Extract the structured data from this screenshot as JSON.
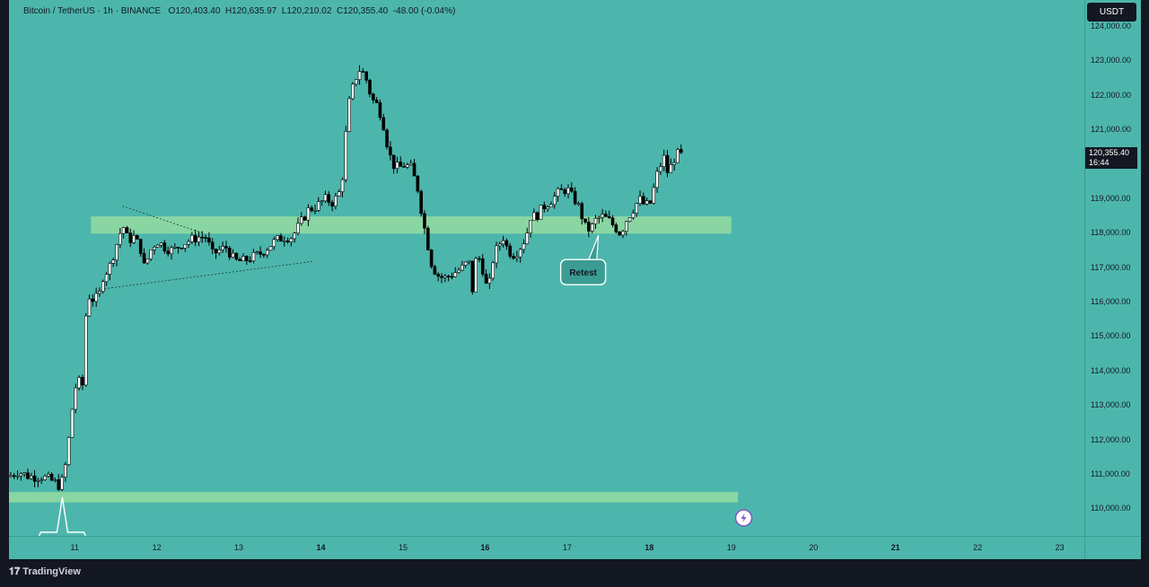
{
  "header": {
    "symbol": "Bitcoin / TetherUS · 1h · BINANCE",
    "open": "O120,403.40",
    "high": "H120,635.97",
    "low": "L120,210.02",
    "close": "C120,355.40",
    "change": "-48.00 (-0.04%)"
  },
  "currency_button": "USDT",
  "last_price": {
    "price": "120,355.40",
    "countdown": "16:44"
  },
  "brand": "TradingView",
  "colors": {
    "background": "#4db6ac",
    "zone": "#9ee0a0",
    "up_candle": "#ffffff",
    "down_candle": "#000000"
  },
  "annotations": [
    {
      "text": "Retest"
    }
  ],
  "icons": [
    "tradingview-logo-icon",
    "lightning-icon"
  ],
  "chart_data": {
    "type": "candlestick",
    "yticks": [
      "124,000.00",
      "123,000.00",
      "122,000.00",
      "121,000.00",
      "120,000.00",
      "119,000.00",
      "118,000.00",
      "117,000.00",
      "116,000.00",
      "115,000.00",
      "114,000.00",
      "113,000.00",
      "112,000.00",
      "111,000.00",
      "110,000.00"
    ],
    "xticks": [
      "11",
      "12",
      "13",
      "14",
      "15",
      "16",
      "17",
      "18",
      "19",
      "20",
      "21",
      "22",
      "23"
    ],
    "xticks_bold": [
      "14",
      "16",
      "18",
      "21"
    ],
    "ylim": [
      109230,
      124780
    ],
    "xlim": [
      10.2,
      23.3
    ],
    "zones": [
      {
        "y_low": 118000,
        "y_high": 118500,
        "x_start": 11.2,
        "x_end": 19.0
      },
      {
        "y_low": 110200,
        "y_high": 110500,
        "x_start": 10.2,
        "x_end": 19.08
      }
    ],
    "trendlines": [
      {
        "from": [
          11.58,
          118800
        ],
        "to": [
          12.58,
          118000
        ]
      },
      {
        "from": [
          11.36,
          116400
        ],
        "to": [
          13.92,
          117200
        ]
      }
    ],
    "price_path": [
      [
        10.2,
        110950
      ],
      [
        10.3,
        111100
      ],
      [
        10.45,
        110950
      ],
      [
        10.6,
        110950
      ],
      [
        10.75,
        110800
      ],
      [
        10.83,
        110650
      ],
      [
        10.9,
        111400
      ],
      [
        10.95,
        112500
      ],
      [
        11.0,
        113500
      ],
      [
        11.05,
        113700
      ],
      [
        11.1,
        113600
      ],
      [
        11.15,
        116300
      ],
      [
        11.2,
        116100
      ],
      [
        11.25,
        116100
      ],
      [
        11.3,
        116200
      ],
      [
        11.35,
        116800
      ],
      [
        11.42,
        117000
      ],
      [
        11.5,
        117600
      ],
      [
        11.55,
        118000
      ],
      [
        11.6,
        118200
      ],
      [
        11.65,
        117800
      ],
      [
        11.72,
        117900
      ],
      [
        11.8,
        117600
      ],
      [
        11.85,
        117000
      ],
      [
        11.92,
        117500
      ],
      [
        12.0,
        117800
      ],
      [
        12.1,
        117600
      ],
      [
        12.2,
        117500
      ],
      [
        12.3,
        117700
      ],
      [
        12.4,
        117800
      ],
      [
        12.5,
        117900
      ],
      [
        12.6,
        117900
      ],
      [
        12.68,
        117400
      ],
      [
        12.75,
        117500
      ],
      [
        12.85,
        117600
      ],
      [
        12.95,
        117200
      ],
      [
        13.05,
        117200
      ],
      [
        13.15,
        117300
      ],
      [
        13.25,
        117400
      ],
      [
        13.35,
        117600
      ],
      [
        13.45,
        117800
      ],
      [
        13.55,
        117900
      ],
      [
        13.65,
        117900
      ],
      [
        13.75,
        118300
      ],
      [
        13.85,
        118700
      ],
      [
        13.95,
        118800
      ],
      [
        14.05,
        119000
      ],
      [
        14.15,
        118900
      ],
      [
        14.25,
        119300
      ],
      [
        14.3,
        120800
      ],
      [
        14.35,
        121900
      ],
      [
        14.42,
        122500
      ],
      [
        14.48,
        122800
      ],
      [
        14.55,
        122500
      ],
      [
        14.62,
        121900
      ],
      [
        14.7,
        121700
      ],
      [
        14.78,
        121000
      ],
      [
        14.82,
        120400
      ],
      [
        14.88,
        120000
      ],
      [
        14.95,
        119900
      ],
      [
        15.02,
        120000
      ],
      [
        15.1,
        119900
      ],
      [
        15.18,
        119300
      ],
      [
        15.25,
        118300
      ],
      [
        15.3,
        117700
      ],
      [
        15.35,
        117100
      ],
      [
        15.42,
        116800
      ],
      [
        15.5,
        116700
      ],
      [
        15.58,
        116800
      ],
      [
        15.65,
        116900
      ],
      [
        15.72,
        117000
      ],
      [
        15.8,
        117200
      ],
      [
        15.85,
        116300
      ],
      [
        15.88,
        117200
      ],
      [
        15.95,
        117300
      ],
      [
        16.0,
        116500
      ],
      [
        16.05,
        116500
      ],
      [
        16.1,
        117300
      ],
      [
        16.15,
        117600
      ],
      [
        16.22,
        117900
      ],
      [
        16.28,
        117500
      ],
      [
        16.35,
        117400
      ],
      [
        16.4,
        117500
      ],
      [
        16.5,
        117900
      ],
      [
        16.55,
        118500
      ],
      [
        16.62,
        118500
      ],
      [
        16.72,
        118800
      ],
      [
        16.82,
        119000
      ],
      [
        16.9,
        119200
      ],
      [
        17.0,
        119300
      ],
      [
        17.05,
        119100
      ],
      [
        17.12,
        118900
      ],
      [
        17.18,
        118500
      ],
      [
        17.22,
        118200
      ],
      [
        17.28,
        118100
      ],
      [
        17.35,
        118400
      ],
      [
        17.42,
        118500
      ],
      [
        17.5,
        118400
      ],
      [
        17.58,
        118200
      ],
      [
        17.65,
        118000
      ],
      [
        17.72,
        118400
      ],
      [
        17.8,
        118700
      ],
      [
        17.88,
        119000
      ],
      [
        17.95,
        118800
      ],
      [
        18.02,
        118900
      ],
      [
        18.08,
        119600
      ],
      [
        18.12,
        119900
      ],
      [
        18.18,
        120200
      ],
      [
        18.22,
        119800
      ],
      [
        18.28,
        120000
      ],
      [
        18.32,
        120300
      ],
      [
        18.38,
        120300
      ],
      [
        18.42,
        120355
      ]
    ]
  }
}
